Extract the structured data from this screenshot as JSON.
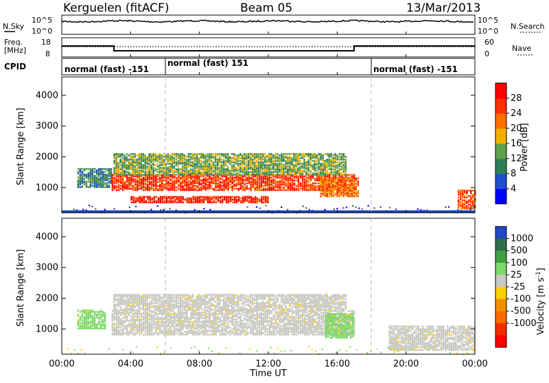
{
  "header": {
    "station": "Kerguelen (fitACF)",
    "beam": "Beam 05",
    "date": "13/Mar/2013"
  },
  "labels": {
    "nsky": "N.Sky",
    "freq_line1": "Freq.",
    "freq_line2": "[MHz]",
    "cpid": "CPID",
    "nsearch": "N.Search",
    "nave": "Nave",
    "x_axis": "Time UT",
    "y_axis": "Slant Range [km]",
    "power_cb": "Power [dB]",
    "velocity_cb_main": "Velocity  [m s",
    "velocity_cb_sup": "-1",
    "velocity_cb_end": "]"
  },
  "noise_panel": {
    "left_ticks": [
      "10^5",
      "10^0"
    ],
    "right_ticks": [
      "10^5",
      "10^0"
    ]
  },
  "freq_panel": {
    "left_ticks": [
      "18",
      "8"
    ],
    "right_ticks": [
      "60",
      "0"
    ]
  },
  "cpid_segments": [
    {
      "label": "normal (fast) -151",
      "start_hour": 0,
      "end_hour": 6
    },
    {
      "label": "normal (fast) 151",
      "start_hour": 6,
      "end_hour": 18
    },
    {
      "label": "normal (fast) -151",
      "start_hour": 18,
      "end_hour": 24
    }
  ],
  "x_ticks": [
    "00:00",
    "04:00",
    "08:00",
    "12:00",
    "16:00",
    "20:00",
    "00:00"
  ],
  "range_ticks": [
    "1000",
    "2000",
    "3000",
    "4000"
  ],
  "power_colorbar": {
    "ticks": [
      "4",
      "8",
      "12",
      "16",
      "20",
      "24",
      "28"
    ],
    "colors": [
      "#0000ff",
      "#1d4fcf",
      "#2f7e58",
      "#5fa04a",
      "#f0b000",
      "#ff7000",
      "#ff3000",
      "#ff0000"
    ]
  },
  "velocity_colorbar": {
    "ticks": [
      "1000",
      "500",
      "100",
      "25",
      "-25",
      "-100",
      "-500",
      "-1000"
    ],
    "colors": [
      "#2448c8",
      "#2f6e4a",
      "#3f9f44",
      "#7fd86a",
      "#c8c8c0",
      "#ffd000",
      "#f09000",
      "#ff6a00",
      "#f03000",
      "#ff0000"
    ]
  },
  "chart_data": {
    "type": "heatmap",
    "title": "Kerguelen (fitACF)  Beam 05  13/Mar/2013",
    "xlabel": "Time UT",
    "ylabel": "Slant Range [km]",
    "xlim_hours": [
      0,
      24
    ],
    "ylim_km": [
      180,
      4600
    ],
    "ground_scatter_color": "#c8c8c0",
    "power_regions": [
      {
        "t0": 0.9,
        "t1": 2.9,
        "r0": 1000,
        "r1": 1600,
        "level_db": 10
      },
      {
        "t0": 2.9,
        "t1": 17.0,
        "r0": 900,
        "r1": 1400,
        "level_db": 26
      },
      {
        "t0": 4.0,
        "t1": 12.0,
        "r0": 500,
        "r1": 700,
        "level_db": 28
      },
      {
        "t0": 3.0,
        "t1": 16.5,
        "r0": 1400,
        "r1": 2100,
        "level_db": 14
      },
      {
        "t0": 15.0,
        "t1": 17.2,
        "r0": 700,
        "r1": 1300,
        "level_db": 22
      },
      {
        "t0": 23.0,
        "t1": 24.0,
        "r0": 300,
        "r1": 900,
        "level_db": 24
      }
    ],
    "velocity_regions": [
      {
        "t0": 0.9,
        "t1": 2.5,
        "r0": 1000,
        "r1": 1600,
        "velocity": 80
      },
      {
        "t0": 2.9,
        "t1": 17.0,
        "r0": 800,
        "r1": 1600,
        "velocity": 0
      },
      {
        "t0": 3.0,
        "t1": 16.5,
        "r0": 1600,
        "r1": 2100,
        "velocity": 0
      },
      {
        "t0": 15.3,
        "t1": 16.9,
        "r0": 700,
        "r1": 1500,
        "velocity": 60
      },
      {
        "t0": 19.0,
        "t1": 24.0,
        "r0": 300,
        "r1": 1100,
        "velocity": 0
      }
    ]
  }
}
